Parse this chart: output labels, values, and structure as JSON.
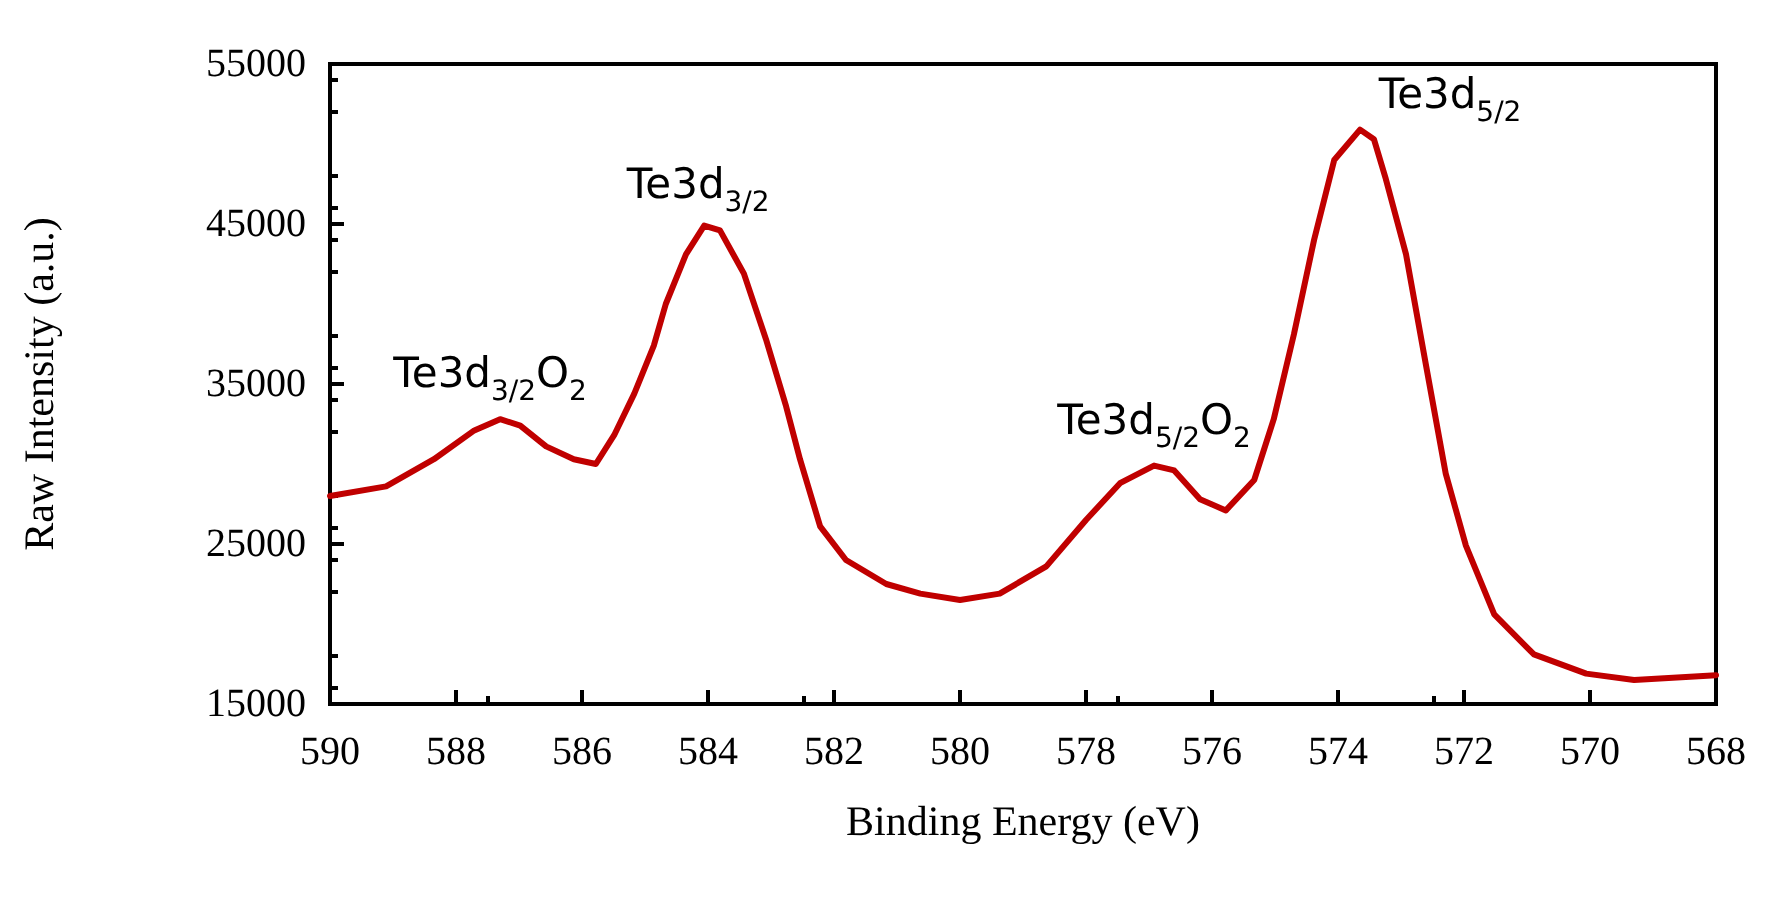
{
  "chart_data": {
    "type": "line",
    "xlabel": "Binding Energy (eV)",
    "ylabel": "Raw Intensity (a.u.)",
    "x": [
      590,
      589.11,
      588.35,
      587.71,
      587.3,
      586.98,
      586.57,
      586.13,
      585.78,
      585.49,
      585.17,
      584.86,
      584.67,
      584.35,
      584.06,
      583.81,
      583.43,
      583.08,
      582.76,
      582.54,
      582.22,
      581.81,
      581.17,
      580.63,
      580.0,
      579.37,
      578.63,
      578.0,
      577.46,
      576.92,
      576.6,
      576.19,
      575.78,
      575.33,
      575.02,
      574.7,
      574.38,
      574.06,
      573.65,
      573.43,
      573.24,
      572.92,
      572.6,
      572.29,
      571.97,
      571.52,
      570.89,
      570.06,
      569.3,
      568.0
    ],
    "series": [
      {
        "color": "#c00000",
        "values": [
          28000,
          28600,
          30300,
          32100,
          32800,
          32400,
          31100,
          30300,
          30000,
          31800,
          34400,
          37400,
          40000,
          43100,
          44900,
          44600,
          41900,
          37800,
          33600,
          30300,
          26100,
          24000,
          22500,
          21900,
          21500,
          21900,
          23600,
          26500,
          28800,
          29900,
          29600,
          27800,
          27100,
          29000,
          32800,
          38100,
          44000,
          49000,
          50900,
          50300,
          47800,
          43100,
          36100,
          29400,
          24900,
          20600,
          18100,
          16900,
          16500,
          16800
        ]
      }
    ],
    "xlim": [
      590,
      568
    ],
    "xticks": [
      590,
      588,
      586,
      584,
      582,
      580,
      578,
      576,
      574,
      572,
      570,
      568
    ],
    "ylim": [
      15000,
      55000
    ],
    "yticks": [
      15000,
      25000,
      35000,
      45000,
      55000
    ],
    "grid": false,
    "marker": "none",
    "line_style": "solid",
    "annotations": [
      {
        "text": "Te3d$_{3/2}$O$_{2}$",
        "x": 587.3,
        "y": 32800
      },
      {
        "text": "Te3d$_{3/2}$",
        "x": 584.06,
        "y": 44900
      },
      {
        "text": "Te3d$_{5/2}$O$_{2}$",
        "x": 576.92,
        "y": 29900
      },
      {
        "text": "Te3d$_{5/2}$",
        "x": 573.65,
        "y": 50900
      }
    ]
  }
}
